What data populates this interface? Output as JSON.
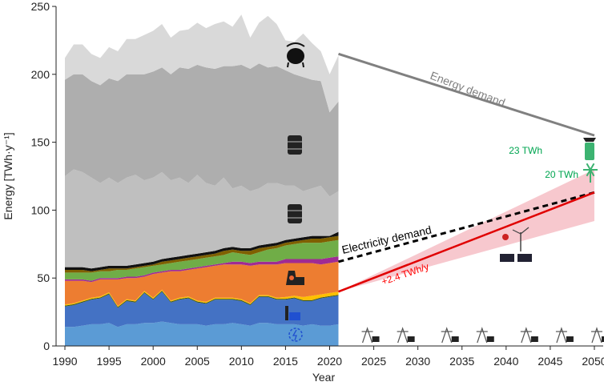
{
  "chart_data": {
    "type": "area",
    "xlabel": "Year",
    "ylabel": "Energy [TWh·y⁻¹]",
    "xlim": [
      1989,
      2051
    ],
    "ylim": [
      0,
      250
    ],
    "x_ticks": [
      1990,
      1995,
      2000,
      2005,
      2010,
      2015,
      2020,
      2025,
      2030,
      2035,
      2040,
      2045,
      2050
    ],
    "y_ticks": [
      0,
      50,
      100,
      150,
      200,
      250
    ],
    "grid": false,
    "historical_years": [
      1990,
      1991,
      1992,
      1993,
      1994,
      1995,
      1996,
      1997,
      1998,
      1999,
      2000,
      2001,
      2002,
      2003,
      2004,
      2005,
      2006,
      2007,
      2008,
      2009,
      2010,
      2011,
      2012,
      2013,
      2014,
      2015,
      2016,
      2017,
      2018,
      2019,
      2020,
      2021
    ],
    "stack_boundaries": [
      {
        "color": "#5b9bd5",
        "values": [
          14,
          14,
          15,
          16,
          16,
          17,
          14,
          16,
          16,
          17,
          17,
          18,
          17,
          16,
          16,
          16,
          15,
          16,
          16,
          17,
          16,
          15,
          17,
          17,
          16,
          16,
          16,
          15,
          16,
          15,
          15,
          16
        ]
      },
      {
        "color": "#4472c4",
        "values": [
          29,
          30,
          32,
          34,
          35,
          38,
          28,
          33,
          32,
          39,
          34,
          40,
          32,
          34,
          35,
          32,
          31,
          34,
          34,
          34,
          33,
          30,
          36,
          36,
          34,
          34,
          35,
          33,
          33,
          35,
          36,
          37
        ]
      },
      {
        "color": "#375623",
        "values": [
          29.7,
          30.7,
          32.7,
          34.7,
          35.7,
          38.7,
          28.7,
          33.7,
          32.7,
          39.7,
          34.7,
          40.7,
          32.7,
          34.7,
          35.7,
          32.7,
          31.7,
          34.7,
          34.7,
          34.7,
          33.7,
          30.7,
          36.7,
          36.7,
          34.7,
          34.7,
          35.7,
          33.7,
          33.7,
          35.7,
          36.7,
          37.7
        ]
      },
      {
        "color": "#ffc000",
        "values": [
          30.5,
          31.5,
          33.5,
          35.5,
          36.5,
          39.5,
          29.5,
          34.5,
          33.5,
          40.5,
          35.5,
          41.5,
          33.5,
          35.5,
          36.5,
          33.5,
          32.5,
          35.5,
          35.5,
          35.5,
          34.5,
          31.5,
          37.5,
          37.5,
          35.5,
          36,
          37,
          36,
          37,
          38,
          39,
          40
        ]
      },
      {
        "color": "#ed7d31",
        "values": [
          48,
          48,
          48,
          47,
          49,
          49,
          49,
          50,
          50,
          51,
          53,
          54,
          55,
          55,
          56,
          57,
          58,
          59,
          60,
          60,
          60,
          59,
          60,
          60,
          60,
          61,
          61,
          61,
          61,
          60,
          61,
          62
        ]
      },
      {
        "color": "#a02b93",
        "values": [
          49,
          49,
          49,
          48,
          50,
          50,
          50,
          51,
          51,
          52,
          54,
          55,
          56,
          56,
          57,
          58,
          59,
          60,
          61,
          62,
          62,
          61,
          62,
          62,
          62,
          64,
          64,
          64,
          64,
          64,
          65,
          66
        ]
      },
      {
        "color": "#70ad47",
        "values": [
          54,
          54,
          54,
          54,
          55,
          55,
          56,
          56,
          57,
          58,
          59,
          60,
          61,
          62,
          63,
          64,
          65,
          66,
          67,
          69,
          68,
          67,
          69,
          71,
          72,
          74,
          75,
          76,
          76,
          76,
          77,
          78
        ]
      },
      {
        "color": "#7f6000",
        "values": [
          56,
          56,
          56,
          55,
          56,
          57,
          57,
          57,
          58,
          59,
          60,
          62,
          63,
          64,
          65,
          66,
          67,
          68,
          70,
          71,
          70,
          70,
          72,
          73,
          74,
          76,
          77,
          78,
          79,
          79,
          80,
          81
        ]
      },
      {
        "color": "#111111",
        "values": [
          58,
          58,
          58,
          57,
          58,
          59,
          59,
          59,
          60,
          61,
          62,
          64,
          65,
          66,
          67,
          68,
          69,
          70,
          72,
          73,
          72,
          72,
          74,
          75,
          76,
          78,
          79,
          80,
          81,
          81,
          81,
          84
        ]
      },
      {
        "color": "#bfbfbf",
        "values": [
          125,
          130,
          128,
          124,
          120,
          124,
          120,
          124,
          126,
          122,
          124,
          128,
          122,
          124,
          120,
          126,
          120,
          118,
          124,
          116,
          118,
          114,
          116,
          120,
          120,
          118,
          118,
          114,
          116,
          118,
          110,
          114
        ]
      },
      {
        "color": "#aeaeae",
        "values": [
          196,
          200,
          200,
          195,
          192,
          197,
          195,
          200,
          200,
          200,
          202,
          205,
          200,
          205,
          204,
          207,
          205,
          204,
          206,
          206,
          207,
          204,
          208,
          205,
          206,
          203,
          200,
          198,
          196,
          195,
          172,
          180
        ]
      },
      {
        "color": "#d9d9d9",
        "values": [
          212,
          222,
          222,
          215,
          212,
          220,
          217,
          226,
          226,
          229,
          232,
          237,
          227,
          232,
          233,
          238,
          234,
          237,
          239,
          235,
          244,
          227,
          238,
          243,
          237,
          225,
          224,
          230,
          223,
          217,
          200,
          214
        ]
      }
    ],
    "series": [
      {
        "name": "Energy demand",
        "x": [
          2021,
          2050
        ],
        "values": [
          215,
          155
        ],
        "color": "#808080"
      },
      {
        "name": "Electricity demand",
        "x": [
          2021,
          2050
        ],
        "values": [
          62,
          113
        ],
        "color": "#000000"
      },
      {
        "name": "+2.4 TWh/y",
        "x": [
          2021,
          2050
        ],
        "values": [
          40,
          113
        ],
        "color": "#ff0000"
      }
    ],
    "uncertainty_band": {
      "x": [
        2021,
        2050
      ],
      "lower": [
        40,
        92
      ],
      "upper": [
        40,
        130
      ],
      "color": "#f4b6bd"
    },
    "annotations": {
      "energy_demand": "Energy demand",
      "electricity_demand": "Electricity demand",
      "growth_rate": "+2.4 TWh/y",
      "twh_23": "23 TWh",
      "twh_20": "20 TWh"
    },
    "colors": {
      "energy_demand_line": "#808080",
      "electricity_line": "#000000",
      "growth_line": "#e00000",
      "band": "#f4b6bd",
      "green_text": "#00a550",
      "axis": "#222222"
    },
    "icons": [
      "gas-tank-icon",
      "oil-barrel-icon",
      "oil-barrel-icon",
      "nuclear-plant-icon",
      "hydro-dam-icon",
      "gear-icon",
      "solar-wind-icon",
      "synthetic-fuel-icon",
      "wind-turbine-icon",
      "transmission-tower-icon"
    ]
  }
}
